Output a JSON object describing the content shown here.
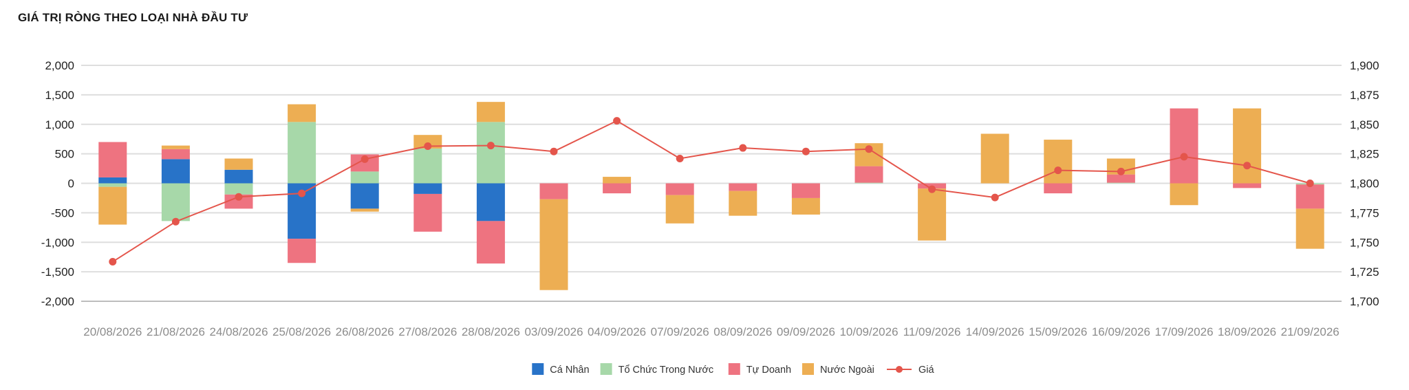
{
  "chart_data": {
    "type": "bar",
    "title": "GIÁ TRỊ RÒNG THEO LOẠI NHÀ ĐẦU TƯ",
    "categories": [
      "20/08/2026",
      "21/08/2026",
      "24/08/2026",
      "25/08/2026",
      "26/08/2026",
      "27/08/2026",
      "28/08/2026",
      "03/09/2026",
      "04/09/2026",
      "07/09/2026",
      "08/09/2026",
      "09/09/2026",
      "10/09/2026",
      "11/09/2026",
      "14/09/2026",
      "15/09/2026",
      "16/09/2026",
      "17/09/2026",
      "18/09/2026",
      "21/09/2026"
    ],
    "stacked": true,
    "ylim": [
      -2000,
      2000
    ],
    "y_ticks": [
      2000,
      1500,
      1000,
      500,
      0,
      -500,
      -1000,
      -1500,
      -2000
    ],
    "y_tick_labels": [
      "2,000",
      "1,500",
      "1,000",
      "500",
      "0",
      "-500",
      "-1,000",
      "-1,500",
      "-2,000"
    ],
    "y2lim": [
      1700,
      1900
    ],
    "y2_ticks": [
      1900,
      1875,
      1850,
      1825,
      1800,
      1775,
      1750,
      1725,
      1700
    ],
    "y2_tick_labels": [
      "1,900",
      "1,875",
      "1,850",
      "1,825",
      "1,800",
      "1,775",
      "1,750",
      "1,725",
      "1,700"
    ],
    "grid": true,
    "legend_position": "bottom-center",
    "series": [
      {
        "name": "Cá Nhân",
        "color": "#2873c8",
        "values": [
          100,
          410,
          230,
          -940,
          -430,
          -180,
          -640,
          0,
          0,
          0,
          0,
          0,
          0,
          0,
          0,
          0,
          0,
          0,
          0,
          0
        ]
      },
      {
        "name": "Tổ Chức Trong Nước",
        "color": "#a7d8a9",
        "values": [
          -60,
          -640,
          -190,
          1040,
          200,
          590,
          1040,
          0,
          0,
          0,
          0,
          0,
          10,
          0,
          0,
          0,
          10,
          0,
          0,
          -20
        ]
      },
      {
        "name": "Tự Doanh",
        "color": "#ee7380",
        "values": [
          600,
          170,
          -240,
          -410,
          290,
          -640,
          -720,
          -270,
          -170,
          -200,
          -130,
          -250,
          280,
          -90,
          0,
          -170,
          140,
          1270,
          -80,
          -410
        ]
      },
      {
        "name": "Nước Ngoài",
        "color": "#edae53",
        "values": [
          -640,
          60,
          190,
          300,
          -50,
          230,
          340,
          -1540,
          110,
          -480,
          -420,
          -280,
          390,
          -880,
          840,
          740,
          270,
          -370,
          1270,
          -680
        ]
      }
    ],
    "line_series": {
      "name": "Giá",
      "color": "#e4554b",
      "axis": "right",
      "values": [
        1733.5,
        1767.5,
        1788.5,
        1791.5,
        1820.5,
        1831.5,
        1832,
        1827,
        1853,
        1821,
        1830,
        1827,
        1829,
        1795,
        1788,
        1811,
        1810,
        1822.5,
        1815,
        1800
      ]
    }
  }
}
